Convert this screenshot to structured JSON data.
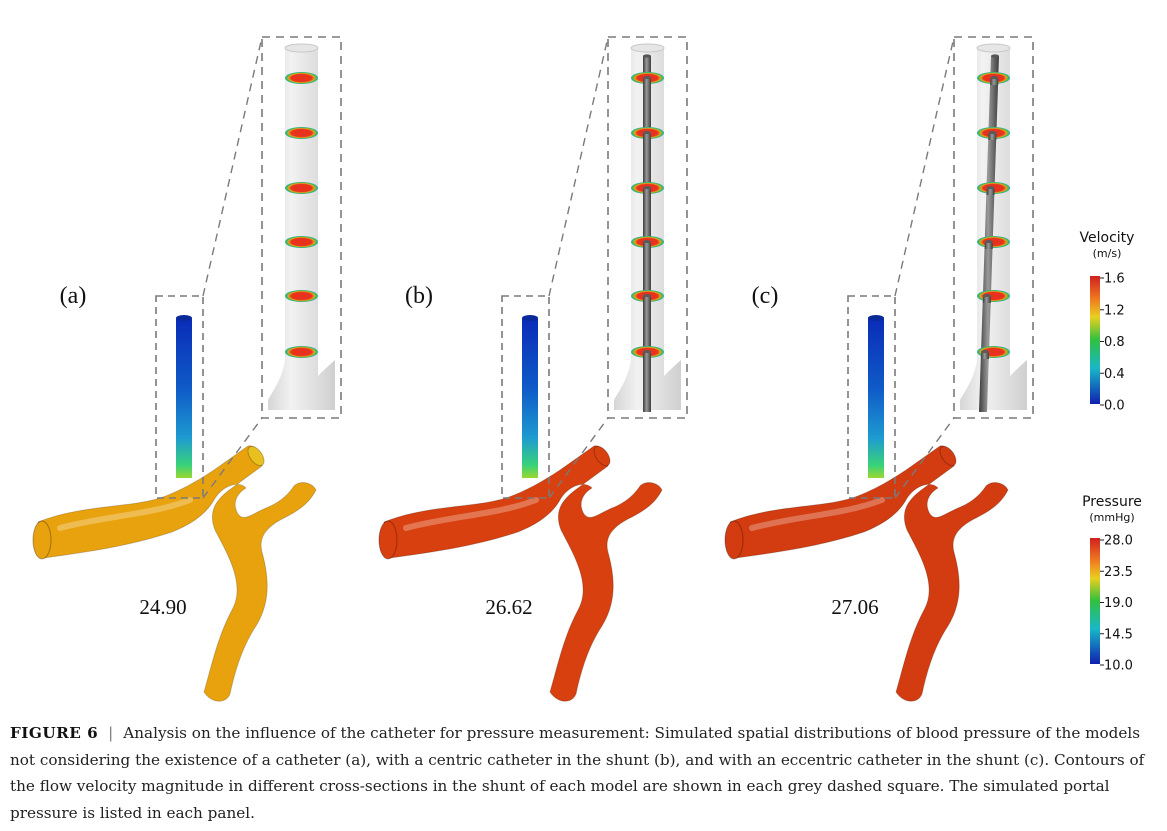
{
  "panels": [
    {
      "label": "(a)",
      "pressure": "24.90",
      "catheter": "none",
      "body_color": "#E8A20E"
    },
    {
      "label": "(b)",
      "pressure": "26.62",
      "catheter": "centric",
      "body_color": "#D8400F"
    },
    {
      "label": "(c)",
      "pressure": "27.06",
      "catheter": "eccentric",
      "body_color": "#D23C10"
    }
  ],
  "colorbars": {
    "velocity": {
      "title": "Velocity",
      "unit": "(m/s)",
      "ticks": [
        "1.6",
        "1.2",
        "0.8",
        "0.4",
        "0.0"
      ]
    },
    "pressure": {
      "title": "Pressure",
      "unit": "(mmHg)",
      "ticks": [
        "28.0",
        "23.5",
        "19.0",
        "14.5",
        "10.0"
      ]
    }
  },
  "caption": {
    "label": "FIGURE 6",
    "separator": "|",
    "text": "Analysis on the influence of the catheter for pressure measurement: Simulated spatial distributions of blood pressure of the models not considering the existence of a catheter (a), with a centric catheter in the shunt (b), and with an eccentric catheter in the shunt (c). Contours of the flow velocity magnitude in different cross-sections in the shunt of each model are shown in each grey dashed square. The simulated portal pressure is listed in each panel."
  },
  "colors": {
    "dash": "#7a7a7a",
    "shunt_top": "#0A2CB8",
    "shunt_mid": "#1E9BD0",
    "shunt_low": "#38D27A",
    "section_core": "#E8321E",
    "section_ring": "#3CC24A",
    "catheter": "#6a6a6a"
  }
}
